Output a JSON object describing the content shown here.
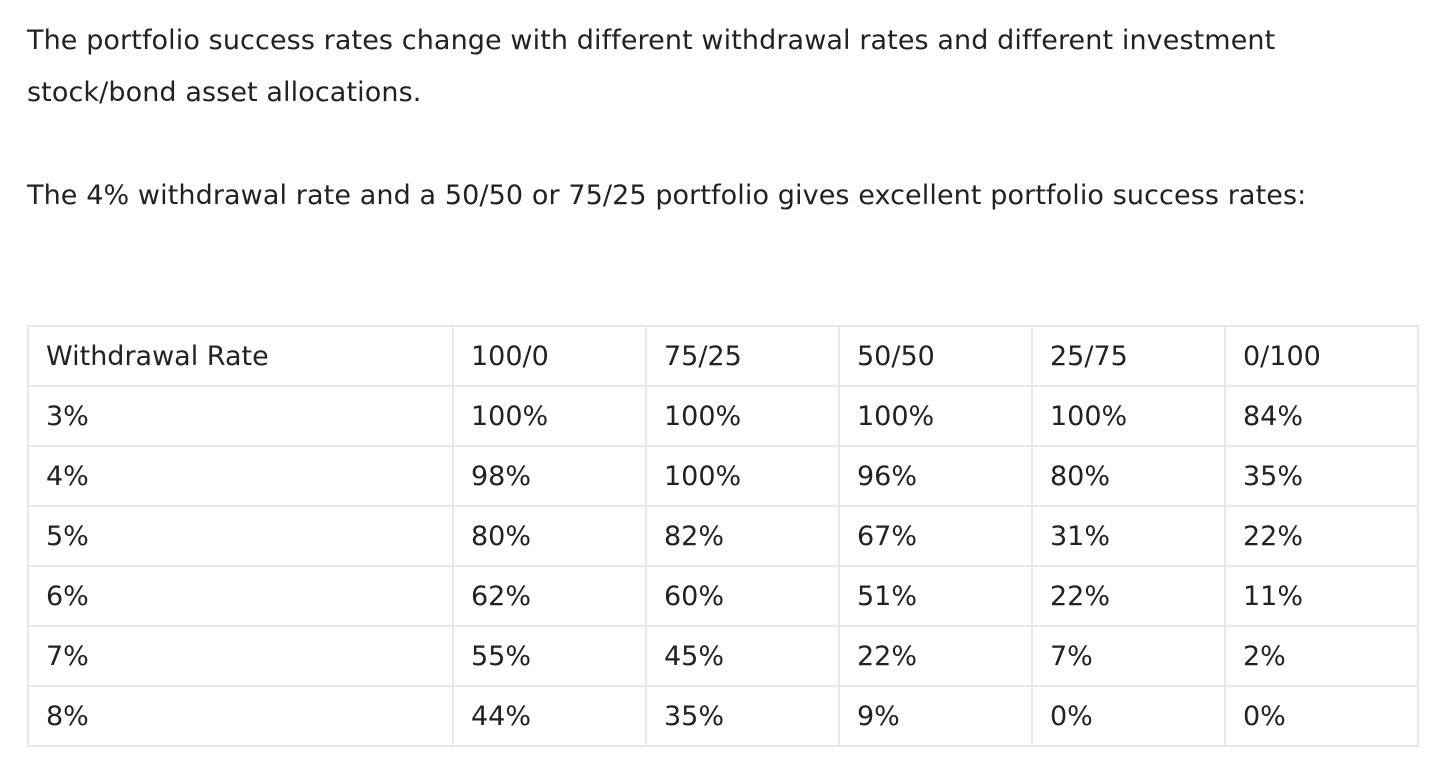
{
  "paragraphs": [
    "The portfolio success rates change with different withdrawal rates and different investment stock/bond asset allocations.",
    "The 4% withdrawal rate and a 50/50 or 75/25 portfolio gives excellent portfolio success rates:"
  ],
  "table": {
    "header": [
      "Withdrawal Rate",
      "100/0",
      "75/25",
      "50/50",
      "25/75",
      "0/100"
    ],
    "rows": [
      [
        "3%",
        "100%",
        "100%",
        "100%",
        "100%",
        "84%"
      ],
      [
        "4%",
        "98%",
        "100%",
        "96%",
        "80%",
        "35%"
      ],
      [
        "5%",
        "80%",
        "82%",
        "67%",
        "31%",
        "22%"
      ],
      [
        "6%",
        "62%",
        "60%",
        "51%",
        "22%",
        "11%"
      ],
      [
        "7%",
        "55%",
        "45%",
        "22%",
        "7%",
        "2%"
      ],
      [
        "8%",
        "44%",
        "35%",
        "9%",
        "0%",
        "0%"
      ]
    ]
  }
}
